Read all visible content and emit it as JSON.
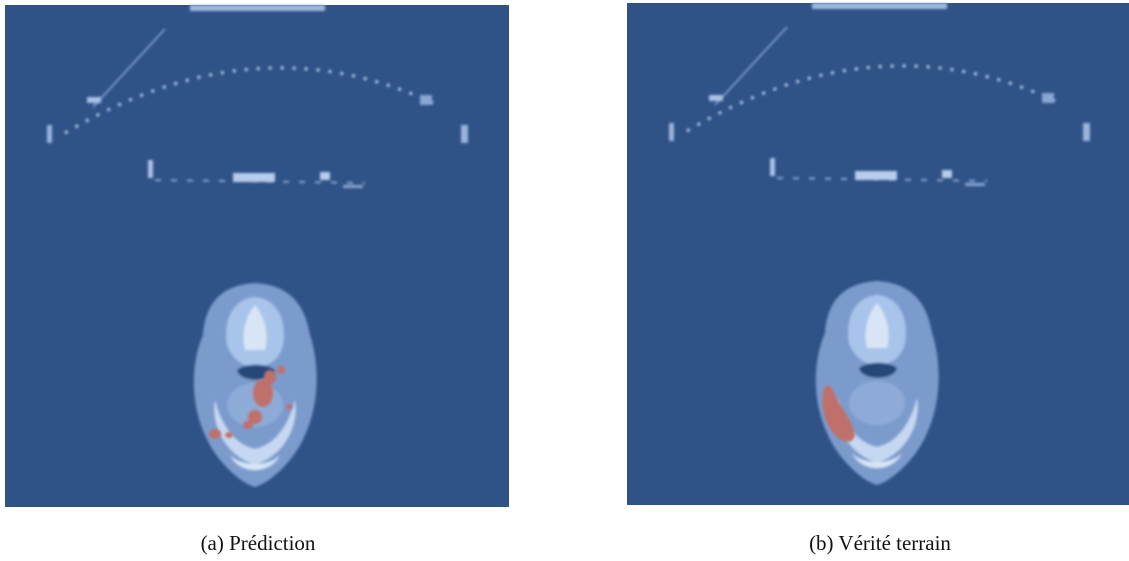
{
  "figures": [
    {
      "caption": "(a) Prédiction"
    },
    {
      "caption": "(b) Vérité terrain"
    }
  ]
}
